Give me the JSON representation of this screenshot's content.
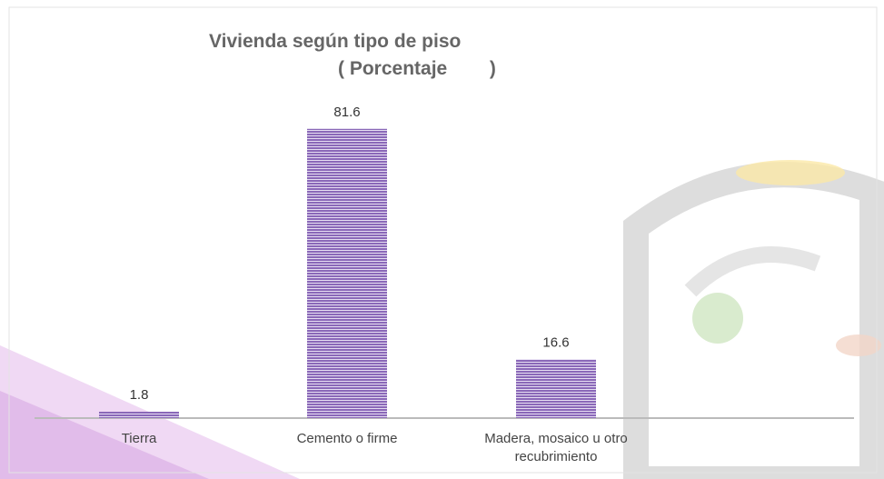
{
  "chart_data": {
    "type": "bar",
    "title": "Vivienda según tipo de piso",
    "subtitle": "( Porcentaje        )",
    "categories": [
      "Tierra",
      "Cemento o firme",
      "Madera, mosaico u otro recubrimiento"
    ],
    "values": [
      1.8,
      81.6,
      16.6
    ],
    "color": "#8a68b8"
  }
}
